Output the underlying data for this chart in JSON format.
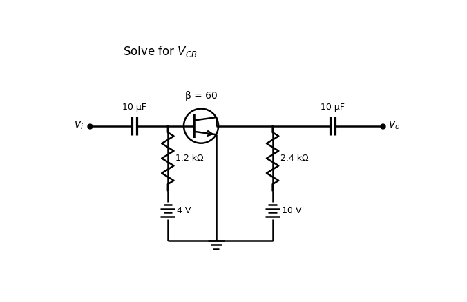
{
  "title": "Solve for $V_{CB}$",
  "vi_label": "$v_i$",
  "vo_label": "$v_o$",
  "beta_label": "β = 60",
  "cap1_label": "10 μF",
  "cap2_label": "10 μF",
  "r1_label": "1.2 kΩ",
  "r2_label": "2.4 kΩ",
  "v1_label": "4 V",
  "v2_label": "10 V",
  "bg_color": "#ffffff",
  "line_color": "#000000",
  "lw": 1.8,
  "xlim": [
    0,
    10
  ],
  "ylim": [
    0,
    7
  ]
}
